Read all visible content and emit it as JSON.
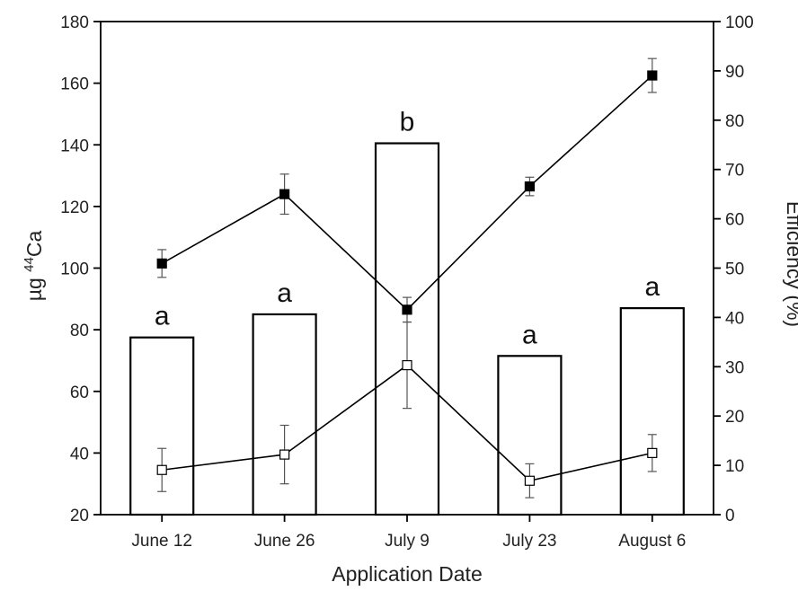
{
  "chart_data": {
    "type": "bar+line",
    "xlabel": "Application Date",
    "ylabel_left": {
      "prefix": "µg ",
      "superscript": "44",
      "suffix": "Ca"
    },
    "ylabel_right": "Efficiency (%)",
    "categories": [
      "June 12",
      "June 26",
      "July 9",
      "July 23",
      "August 6"
    ],
    "ylim_left": [
      20,
      180
    ],
    "yticks_left": [
      20,
      40,
      60,
      80,
      100,
      120,
      140,
      160,
      180
    ],
    "ylim_right": [
      0,
      100
    ],
    "yticks_right": [
      0,
      10,
      20,
      30,
      40,
      50,
      60,
      70,
      80,
      90,
      100
    ],
    "grid": false,
    "bars": {
      "axis": "left",
      "values": [
        77.5,
        85,
        140.5,
        71.5,
        87
      ],
      "significance_labels": [
        "a",
        "a",
        "b",
        "a",
        "a"
      ]
    },
    "series": [
      {
        "marker": "filled-square",
        "axis": "left",
        "values": [
          101.5,
          124,
          86.5,
          126.5,
          162.5
        ],
        "errors": [
          4.5,
          6.5,
          4.0,
          3.0,
          5.5
        ]
      },
      {
        "marker": "open-square",
        "axis": "left",
        "values": [
          34.5,
          39.5,
          68.5,
          31,
          40
        ],
        "errors": [
          7.0,
          9.5,
          14.0,
          5.5,
          6.0
        ]
      }
    ]
  }
}
